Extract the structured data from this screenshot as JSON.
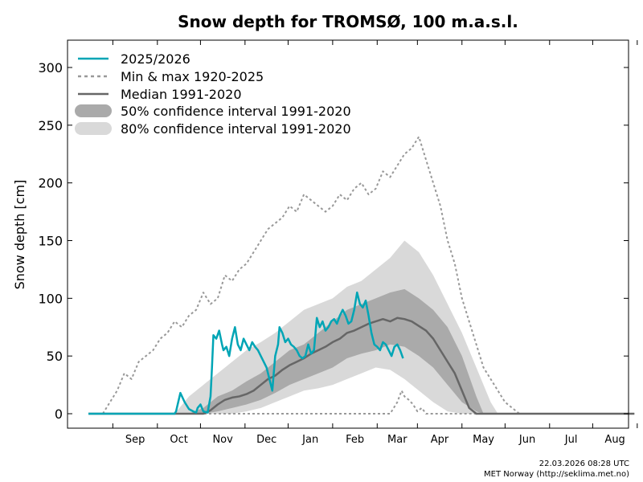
{
  "chart_data": {
    "type": "line",
    "title": "Snow depth for TROMSØ, 100 m.a.s.l.",
    "ylabel": "Snow depth [cm]",
    "xlabel": "",
    "ylim": [
      0,
      300
    ],
    "yticks": [
      0,
      50,
      100,
      150,
      200,
      250,
      300
    ],
    "grid": false,
    "legend_position": "top-left",
    "x_axis": {
      "start": "Aug 15",
      "end": "Aug 31",
      "months": [
        "Sep",
        "Oct",
        "Nov",
        "Dec",
        "Jan",
        "Feb",
        "Mar",
        "Apr",
        "May",
        "Jun",
        "Jul",
        "Aug"
      ]
    },
    "legend": {
      "current": "2025/2026",
      "minmax": "Min & max 1920-2025",
      "median": "Median 1991-2020",
      "ci50": "50% confidence interval 1991-2020",
      "ci80": "80% confidence interval 1991-2020"
    },
    "colors": {
      "current": "#00a5b5",
      "minmax": "#999999",
      "median": "#666666",
      "ci50": "#aaaaaa",
      "ci80": "#d9d9d9"
    },
    "series": {
      "current": {
        "name": "2025/2026",
        "x_days": [
          0,
          60,
          61,
          64,
          67,
          70,
          73,
          75,
          76,
          78,
          80,
          83,
          85,
          86,
          87,
          89,
          91,
          93,
          94,
          96,
          98,
          100,
          102,
          104,
          106,
          108,
          110,
          112,
          114,
          116,
          118,
          120,
          122,
          124,
          126,
          128,
          130,
          132,
          133,
          135,
          137,
          139,
          141,
          143,
          145,
          147,
          149,
          151,
          153,
          155,
          157,
          159,
          161,
          163,
          165,
          167,
          169,
          171,
          173,
          175,
          177,
          179,
          181,
          183,
          185,
          187,
          189,
          191,
          193,
          195,
          197,
          199,
          201,
          203,
          205,
          207,
          209,
          211,
          213,
          215,
          217,
          219
        ],
        "values": [
          0,
          0,
          2,
          18,
          10,
          4,
          2,
          1,
          5,
          8,
          2,
          1,
          15,
          40,
          68,
          65,
          72,
          60,
          55,
          58,
          50,
          65,
          75,
          60,
          55,
          65,
          60,
          55,
          62,
          58,
          55,
          50,
          45,
          40,
          30,
          20,
          50,
          60,
          75,
          70,
          62,
          65,
          60,
          58,
          55,
          50,
          48,
          50,
          60,
          52,
          55,
          83,
          75,
          80,
          72,
          75,
          80,
          82,
          78,
          85,
          90,
          85,
          78,
          80,
          90,
          105,
          95,
          92,
          98,
          85,
          70,
          60,
          58,
          55,
          62,
          60,
          55,
          50,
          58,
          60,
          55,
          48
        ]
      },
      "median": {
        "name": "Median 1991-2020",
        "x_days": [
          0,
          80,
          85,
          90,
          95,
          100,
          105,
          110,
          115,
          120,
          125,
          130,
          135,
          140,
          145,
          150,
          155,
          160,
          165,
          170,
          175,
          180,
          185,
          190,
          195,
          200,
          205,
          210,
          215,
          220,
          225,
          230,
          235,
          240,
          245,
          250,
          255,
          260,
          265,
          270,
          275,
          280,
          285,
          290,
          295,
          300,
          305,
          310,
          315,
          320,
          325,
          330,
          335,
          340,
          345,
          350,
          355,
          360,
          365,
          370,
          380
        ],
        "values": [
          0,
          0,
          3,
          8,
          12,
          14,
          15,
          17,
          20,
          25,
          30,
          33,
          38,
          42,
          45,
          48,
          52,
          55,
          58,
          62,
          65,
          70,
          72,
          75,
          78,
          80,
          82,
          80,
          83,
          82,
          80,
          76,
          72,
          65,
          55,
          45,
          35,
          20,
          5,
          0,
          0,
          0,
          0,
          0,
          0,
          0,
          0,
          0,
          0,
          0,
          0,
          0,
          0,
          0,
          0,
          0,
          0,
          0,
          0,
          0,
          0
        ]
      },
      "max": {
        "name": "Max 1920-2025",
        "x_days": [
          0,
          10,
          15,
          20,
          25,
          30,
          35,
          40,
          45,
          50,
          55,
          60,
          65,
          70,
          75,
          80,
          85,
          90,
          95,
          100,
          105,
          110,
          115,
          120,
          125,
          130,
          135,
          140,
          145,
          150,
          155,
          160,
          165,
          170,
          175,
          180,
          185,
          190,
          195,
          200,
          205,
          210,
          215,
          220,
          225,
          230,
          235,
          240,
          245,
          250,
          255,
          260,
          265,
          270,
          275,
          280,
          285,
          290,
          295,
          300
        ],
        "values": [
          0,
          0,
          10,
          20,
          35,
          30,
          45,
          50,
          55,
          65,
          70,
          80,
          75,
          85,
          90,
          105,
          95,
          100,
          120,
          115,
          125,
          130,
          140,
          150,
          160,
          165,
          170,
          180,
          175,
          190,
          185,
          180,
          175,
          180,
          190,
          185,
          195,
          200,
          190,
          195,
          210,
          205,
          215,
          225,
          230,
          240,
          220,
          200,
          180,
          150,
          130,
          100,
          80,
          60,
          40,
          30,
          20,
          10,
          5,
          0
        ]
      },
      "min": {
        "name": "Min 1920-2025",
        "x_days": [
          0,
          210,
          215,
          218,
          220,
          223,
          226,
          229,
          232,
          235,
          380
        ],
        "values": [
          0,
          0,
          10,
          20,
          15,
          12,
          8,
          2,
          5,
          0,
          0
        ]
      },
      "ci50": {
        "name": "50% confidence interval 1991-2020",
        "x_days": [
          70,
          80,
          90,
          100,
          110,
          120,
          130,
          140,
          150,
          160,
          170,
          180,
          190,
          200,
          210,
          220,
          230,
          240,
          250,
          260,
          270,
          275
        ],
        "lower": [
          0,
          0,
          2,
          5,
          8,
          12,
          18,
          25,
          30,
          35,
          40,
          48,
          52,
          55,
          60,
          58,
          50,
          40,
          25,
          10,
          2,
          0
        ],
        "upper": [
          0,
          5,
          15,
          20,
          28,
          35,
          45,
          55,
          60,
          70,
          80,
          90,
          95,
          100,
          105,
          108,
          100,
          90,
          75,
          50,
          15,
          0
        ]
      },
      "ci80": {
        "name": "80% confidence interval 1991-2020",
        "x_days": [
          60,
          70,
          80,
          90,
          100,
          110,
          120,
          130,
          140,
          150,
          160,
          170,
          180,
          190,
          200,
          210,
          220,
          230,
          240,
          250,
          260,
          270,
          280,
          285
        ],
        "lower": [
          0,
          0,
          0,
          0,
          0,
          2,
          5,
          10,
          15,
          20,
          22,
          25,
          30,
          35,
          40,
          38,
          30,
          20,
          10,
          2,
          0,
          0,
          0,
          0
        ],
        "upper": [
          0,
          15,
          25,
          35,
          45,
          55,
          62,
          70,
          80,
          90,
          95,
          100,
          110,
          115,
          125,
          135,
          150,
          140,
          120,
          95,
          70,
          40,
          10,
          0
        ]
      }
    }
  },
  "footer": {
    "timestamp": "22.03.2026 08:28 UTC",
    "source": "MET Norway (http://seklima.met.no)"
  }
}
